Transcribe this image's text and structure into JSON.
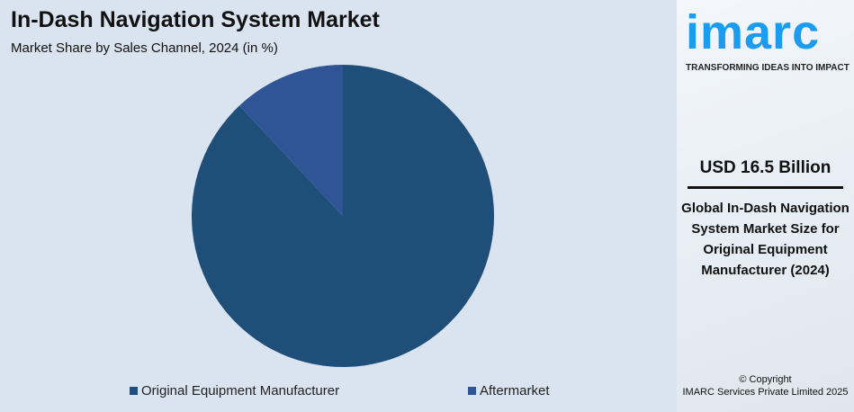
{
  "header": {
    "title": "In-Dash Navigation System Market",
    "subtitle": "Market Share by Sales Channel, 2024 (in %)"
  },
  "chart_data": {
    "type": "pie",
    "categories": [
      "Original Equipment Manufacturer",
      "Aftermarket"
    ],
    "values": [
      88,
      12
    ],
    "colors": [
      "#1f4e79",
      "#2f5597"
    ],
    "legend": "bottom"
  },
  "brand": {
    "logo": "imarc",
    "tagline": "TRANSFORMING IDEAS INTO IMPACT",
    "color": "#1a9cf0"
  },
  "panel": {
    "value": "USD 16.5 Billion",
    "description": "Global In-Dash Navigation System Market Size for Original Equipment Manufacturer (2024)"
  },
  "footer": {
    "copyright": "© Copyright",
    "company": "IMARC Services Private Limited 2025"
  }
}
